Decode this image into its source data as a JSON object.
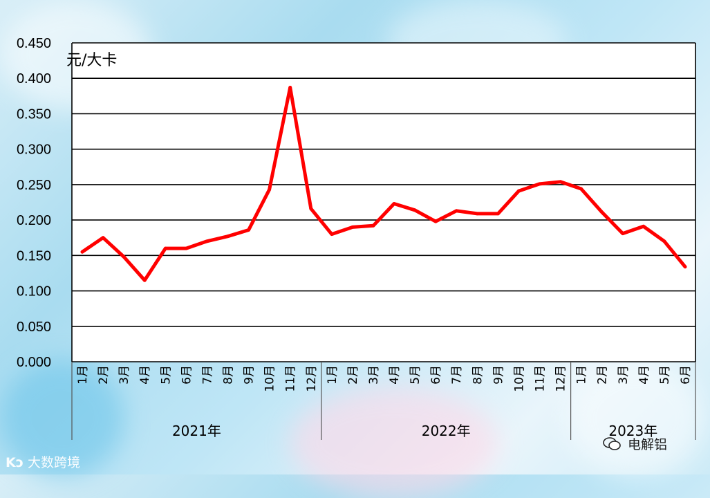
{
  "chart_data": {
    "type": "line",
    "unit_label": "元/大卡",
    "y_ticks": [
      "0.450",
      "0.400",
      "0.350",
      "0.300",
      "0.250",
      "0.200",
      "0.150",
      "0.100",
      "0.050",
      "0.000"
    ],
    "ylim": [
      0,
      0.45
    ],
    "grid": true,
    "line_color": "#ff0000",
    "categories": [
      "1月",
      "2月",
      "3月",
      "4月",
      "5月",
      "6月",
      "7月",
      "8月",
      "9月",
      "10月",
      "11月",
      "12月",
      "1月",
      "2月",
      "3月",
      "4月",
      "5月",
      "6月",
      "7月",
      "8月",
      "9月",
      "10月",
      "11月",
      "12月",
      "1月",
      "2月",
      "3月",
      "4月",
      "5月",
      "6月"
    ],
    "groups": [
      {
        "label": "2021年",
        "count": 12
      },
      {
        "label": "2022年",
        "count": 12
      },
      {
        "label": "2023年",
        "count": 6
      }
    ],
    "series": [
      {
        "values": [
          0.155,
          0.175,
          0.148,
          0.115,
          0.16,
          0.16,
          0.17,
          0.177,
          0.186,
          0.243,
          0.387,
          0.216,
          0.18,
          0.19,
          0.192,
          0.223,
          0.214,
          0.198,
          0.213,
          0.209,
          0.209,
          0.241,
          0.251,
          0.254,
          0.244,
          0.211,
          0.181,
          0.191,
          0.17,
          0.134
        ]
      }
    ]
  },
  "watermarks": {
    "left": "大数跨境",
    "right": "电解铝"
  }
}
